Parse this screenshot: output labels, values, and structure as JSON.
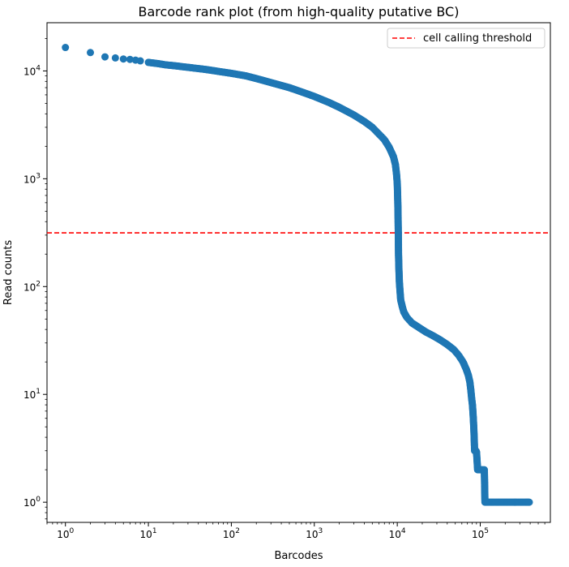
{
  "chart_data": {
    "type": "scatter",
    "title": "Barcode rank plot (from high-quality putative BC)",
    "xlabel": "Barcodes",
    "ylabel": "Read counts",
    "x_scale": "log",
    "y_scale": "log",
    "xlim": [
      0.6,
      700000
    ],
    "ylim": [
      0.65,
      28000
    ],
    "grid": false,
    "legend_position": "top-right",
    "x_ticks": [
      {
        "base": "10",
        "exp": "0",
        "value": 1
      },
      {
        "base": "10",
        "exp": "1",
        "value": 10
      },
      {
        "base": "10",
        "exp": "2",
        "value": 100
      },
      {
        "base": "10",
        "exp": "3",
        "value": 1000
      },
      {
        "base": "10",
        "exp": "4",
        "value": 10000
      },
      {
        "base": "10",
        "exp": "5",
        "value": 100000
      }
    ],
    "y_ticks": [
      {
        "base": "10",
        "exp": "0",
        "value": 1
      },
      {
        "base": "10",
        "exp": "1",
        "value": 10
      },
      {
        "base": "10",
        "exp": "2",
        "value": 100
      },
      {
        "base": "10",
        "exp": "3",
        "value": 1000
      },
      {
        "base": "10",
        "exp": "4",
        "value": 10000
      }
    ],
    "series": [
      {
        "color": "#1f77b4",
        "points": [
          [
            1,
            16500
          ],
          [
            2,
            14800
          ],
          [
            3,
            13500
          ],
          [
            4,
            13200
          ],
          [
            5,
            12900
          ],
          [
            6,
            12800
          ],
          [
            7,
            12600
          ],
          [
            8,
            12400
          ],
          [
            10,
            12000
          ],
          [
            13,
            11700
          ],
          [
            16,
            11400
          ],
          [
            20,
            11200
          ],
          [
            30,
            10800
          ],
          [
            50,
            10300
          ],
          [
            70,
            9900
          ],
          [
            100,
            9500
          ],
          [
            150,
            9000
          ],
          [
            200,
            8500
          ],
          [
            300,
            7800
          ],
          [
            500,
            7000
          ],
          [
            700,
            6400
          ],
          [
            1000,
            5800
          ],
          [
            1500,
            5100
          ],
          [
            2000,
            4600
          ],
          [
            3000,
            3900
          ],
          [
            4000,
            3400
          ],
          [
            5000,
            3000
          ],
          [
            6000,
            2600
          ],
          [
            7000,
            2300
          ],
          [
            8000,
            1950
          ],
          [
            9000,
            1600
          ],
          [
            9500,
            1350
          ],
          [
            9800,
            1100
          ],
          [
            10000,
            900
          ],
          [
            10100,
            700
          ],
          [
            10200,
            500
          ],
          [
            10300,
            300
          ],
          [
            10350,
            200
          ],
          [
            10450,
            150
          ],
          [
            10600,
            110
          ],
          [
            10800,
            90
          ],
          [
            11000,
            75
          ],
          [
            11500,
            65
          ],
          [
            12000,
            58
          ],
          [
            13000,
            52
          ],
          [
            15000,
            46
          ],
          [
            18000,
            42
          ],
          [
            22000,
            38
          ],
          [
            27000,
            35
          ],
          [
            33000,
            32
          ],
          [
            40000,
            29
          ],
          [
            48000,
            26
          ],
          [
            55000,
            23
          ],
          [
            62000,
            20
          ],
          [
            68000,
            17
          ],
          [
            72000,
            15
          ],
          [
            75000,
            13
          ],
          [
            77000,
            11
          ],
          [
            79000,
            9
          ],
          [
            80500,
            8
          ],
          [
            81500,
            7
          ],
          [
            82500,
            6
          ],
          [
            83500,
            5
          ],
          [
            84500,
            4
          ],
          [
            85500,
            3
          ],
          [
            87000,
            3
          ],
          [
            90000,
            3
          ],
          [
            93000,
            2
          ],
          [
            100000,
            2
          ],
          [
            108000,
            2
          ],
          [
            112000,
            2
          ],
          [
            114000,
            1
          ],
          [
            130000,
            1
          ],
          [
            160000,
            1
          ],
          [
            200000,
            1
          ],
          [
            250000,
            1
          ],
          [
            300000,
            1
          ],
          [
            350000,
            1
          ],
          [
            390000,
            1
          ]
        ]
      }
    ],
    "threshold": {
      "y": 315,
      "label": "cell calling threshold",
      "color": "#ff0000",
      "style": "dashed"
    }
  }
}
